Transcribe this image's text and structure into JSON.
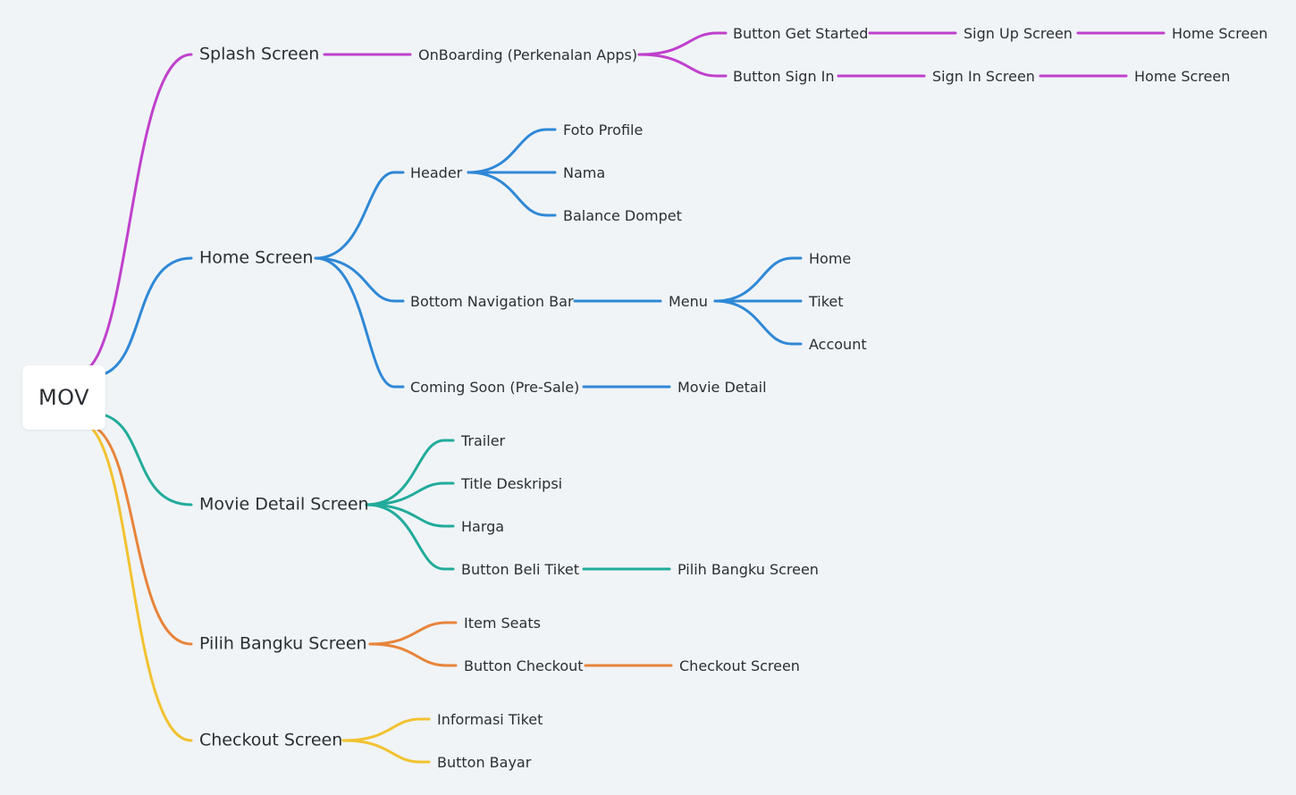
{
  "mindmap": {
    "root": "MOV",
    "colors": {
      "splash": "#c040cc",
      "home": "#2f88d6",
      "movie_detail": "#22ab9b",
      "pilih_bangku": "#e8843a",
      "checkout": "#f2c230"
    },
    "splash": {
      "label": "Splash Screen",
      "onboarding": "OnBoarding (Perkenalan Apps)",
      "get_started": "Button Get Started",
      "sign_up": "Sign Up Screen",
      "home_a": "Home Screen",
      "sign_in_btn": "Button Sign In",
      "sign_in": "Sign In Screen",
      "home_b": "Home Screen"
    },
    "home": {
      "label": "Home Screen",
      "header": "Header",
      "foto": "Foto Profile",
      "nama": "Nama",
      "balance": "Balance Dompet",
      "bottom_nav": "Bottom Navigation Bar",
      "menu": "Menu",
      "menu_home": "Home",
      "menu_tiket": "Tiket",
      "menu_account": "Account",
      "coming_soon": "Coming Soon (Pre-Sale)",
      "movie_detail": "Movie Detail"
    },
    "movie_detail": {
      "label": "Movie Detail Screen",
      "trailer": "Trailer",
      "title": "Title Deskripsi",
      "harga": "Harga",
      "beli": "Button Beli Tiket",
      "pilih": "Pilih Bangku Screen"
    },
    "pilih_bangku": {
      "label": "Pilih Bangku Screen",
      "seats": "Item Seats",
      "checkout_btn": "Button Checkout",
      "checkout": "Checkout Screen"
    },
    "checkout": {
      "label": "Checkout Screen",
      "info": "Informasi Tiket",
      "bayar": "Button Bayar"
    }
  }
}
